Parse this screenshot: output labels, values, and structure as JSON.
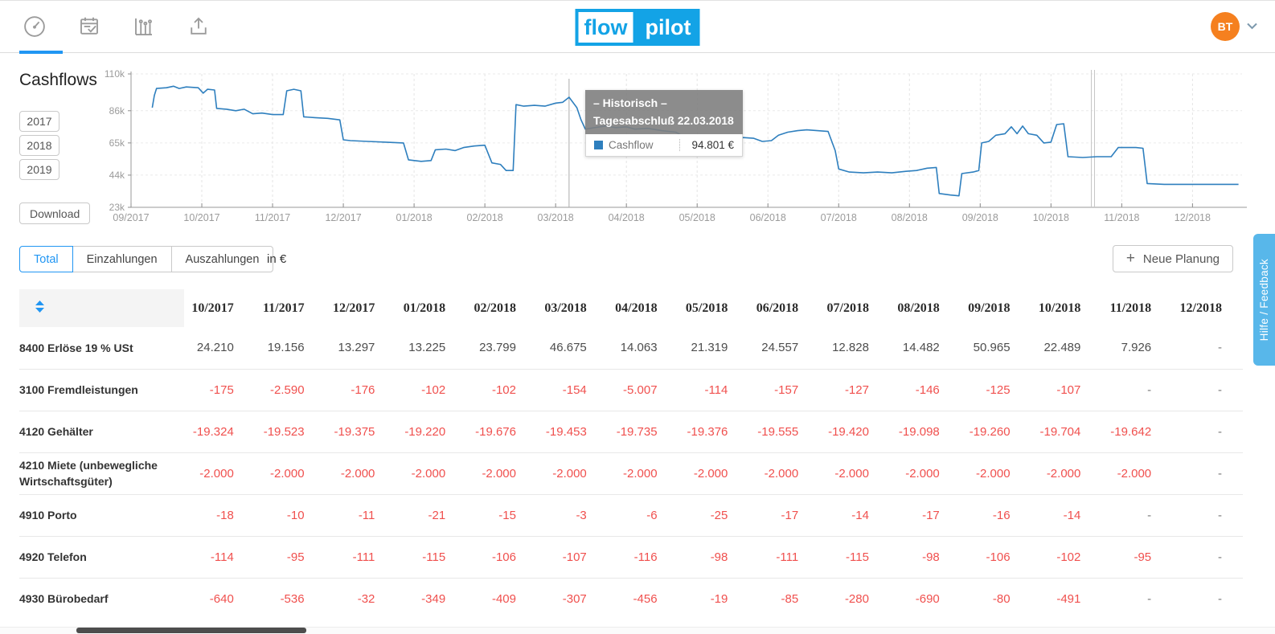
{
  "header": {
    "logo": {
      "left": "flow",
      "right": "pilot"
    },
    "user": {
      "initials": "BT"
    }
  },
  "sidebar": {
    "title": "Cashflows",
    "years": [
      "2017",
      "2018",
      "2019"
    ],
    "download_label": "Download"
  },
  "chart_data": {
    "type": "line",
    "title": "Cashflows",
    "unit": "k EUR",
    "ylim": [
      23,
      110
    ],
    "y_ticks": [
      110,
      86,
      65,
      44,
      23
    ],
    "y_tick_labels": [
      "110k",
      "86k",
      "65k",
      "44k",
      "23k"
    ],
    "x_tick_labels": [
      "09/2017",
      "10/2017",
      "11/2017",
      "12/2017",
      "01/2018",
      "02/2018",
      "03/2018",
      "04/2018",
      "05/2018",
      "06/2018",
      "07/2018",
      "08/2018",
      "09/2018",
      "10/2018",
      "11/2018",
      "12/2018"
    ],
    "grid": true,
    "crosshair_month": 6.19,
    "marker_month": 13.57,
    "series": [
      {
        "name": "Cashflow",
        "color": "#2e7fbe",
        "points": [
          [
            0.3,
            88
          ],
          [
            0.33,
            96
          ],
          [
            0.36,
            100.5
          ],
          [
            0.5,
            101
          ],
          [
            0.6,
            102
          ],
          [
            0.68,
            100.5
          ],
          [
            0.78,
            101.5
          ],
          [
            0.95,
            101
          ],
          [
            1.02,
            97.5
          ],
          [
            1.08,
            100
          ],
          [
            1.18,
            99.5
          ],
          [
            1.21,
            87.5
          ],
          [
            1.35,
            87
          ],
          [
            1.48,
            86
          ],
          [
            1.6,
            87
          ],
          [
            1.72,
            84
          ],
          [
            1.85,
            84.5
          ],
          [
            2.0,
            83.5
          ],
          [
            2.15,
            83.5
          ],
          [
            2.2,
            99
          ],
          [
            2.3,
            100
          ],
          [
            2.4,
            99
          ],
          [
            2.44,
            82
          ],
          [
            2.6,
            81.5
          ],
          [
            2.78,
            81
          ],
          [
            2.95,
            80
          ],
          [
            3.0,
            67
          ],
          [
            3.1,
            66.5
          ],
          [
            3.35,
            66
          ],
          [
            3.6,
            65.5
          ],
          [
            3.85,
            65
          ],
          [
            3.92,
            54
          ],
          [
            4.1,
            53
          ],
          [
            4.24,
            53.5
          ],
          [
            4.3,
            60.5
          ],
          [
            4.45,
            61
          ],
          [
            4.58,
            60
          ],
          [
            4.7,
            62
          ],
          [
            4.85,
            63
          ],
          [
            5.0,
            63.5
          ],
          [
            5.1,
            52
          ],
          [
            5.22,
            51
          ],
          [
            5.3,
            47
          ],
          [
            5.4,
            47
          ],
          [
            5.44,
            90
          ],
          [
            5.55,
            89
          ],
          [
            5.7,
            89.5
          ],
          [
            5.85,
            89
          ],
          [
            6.0,
            91
          ],
          [
            6.1,
            91.5
          ],
          [
            6.19,
            94.8
          ],
          [
            6.3,
            88
          ],
          [
            6.36,
            80
          ],
          [
            6.42,
            74
          ],
          [
            6.55,
            75
          ],
          [
            6.7,
            76
          ],
          [
            6.85,
            75
          ],
          [
            7.0,
            75.5
          ],
          [
            7.12,
            74
          ],
          [
            7.3,
            74.5
          ],
          [
            7.5,
            73
          ],
          [
            7.7,
            72
          ],
          [
            7.85,
            68
          ],
          [
            8.0,
            67
          ],
          [
            8.2,
            66.5
          ],
          [
            8.38,
            67
          ],
          [
            8.52,
            68
          ],
          [
            8.65,
            68.5
          ],
          [
            8.8,
            68
          ],
          [
            8.92,
            66
          ],
          [
            9.05,
            66.5
          ],
          [
            9.15,
            70
          ],
          [
            9.28,
            72
          ],
          [
            9.42,
            73
          ],
          [
            9.55,
            73.5
          ],
          [
            9.7,
            73
          ],
          [
            9.85,
            72.5
          ],
          [
            9.95,
            60
          ],
          [
            10.0,
            48
          ],
          [
            10.15,
            46
          ],
          [
            10.35,
            45.5
          ],
          [
            10.55,
            46
          ],
          [
            10.75,
            45.5
          ],
          [
            10.95,
            46.5
          ],
          [
            11.1,
            47
          ],
          [
            11.25,
            48.5
          ],
          [
            11.38,
            49
          ],
          [
            11.42,
            32
          ],
          [
            11.58,
            31
          ],
          [
            11.7,
            30.5
          ],
          [
            11.74,
            45
          ],
          [
            11.9,
            46
          ],
          [
            11.98,
            47
          ],
          [
            12.02,
            65
          ],
          [
            12.12,
            66
          ],
          [
            12.22,
            70
          ],
          [
            12.35,
            71
          ],
          [
            12.44,
            75.5
          ],
          [
            12.52,
            71
          ],
          [
            12.6,
            76
          ],
          [
            12.68,
            71
          ],
          [
            12.8,
            70
          ],
          [
            12.9,
            65
          ],
          [
            13.0,
            65.5
          ],
          [
            13.08,
            77
          ],
          [
            13.18,
            77.5
          ],
          [
            13.24,
            56
          ],
          [
            13.45,
            55.5
          ],
          [
            13.65,
            56
          ],
          [
            13.85,
            56
          ],
          [
            13.95,
            62
          ],
          [
            14.2,
            62
          ],
          [
            14.3,
            61.5
          ],
          [
            14.36,
            38.5
          ],
          [
            14.6,
            38
          ],
          [
            15.0,
            38
          ],
          [
            15.4,
            38
          ],
          [
            15.65,
            38
          ]
        ]
      }
    ]
  },
  "tooltip": {
    "line1": "– Historisch –",
    "line2": "Tagesabschluß 22.03.2018",
    "series_label": "Cashflow",
    "value": "94.801 €"
  },
  "tabs": {
    "items": [
      "Total",
      "Einzahlungen",
      "Auszahlungen"
    ],
    "active": 0,
    "unit_label": "in €"
  },
  "actions": {
    "plus": "+",
    "new_plan_label": "Neue Planung"
  },
  "help_tab": {
    "label": "Hilfe / Feedback"
  },
  "table": {
    "columns": [
      "10/2017",
      "11/2017",
      "12/2017",
      "01/2018",
      "02/2018",
      "03/2018",
      "04/2018",
      "05/2018",
      "06/2018",
      "07/2018",
      "08/2018",
      "09/2018",
      "10/2018",
      "11/2018",
      "12/2018"
    ],
    "rows": [
      {
        "label": "8400 Erlöse 19 % USt",
        "values": [
          "24.210",
          "19.156",
          "13.297",
          "13.225",
          "23.799",
          "46.675",
          "14.063",
          "21.319",
          "24.557",
          "12.828",
          "14.482",
          "50.965",
          "22.489",
          "7.926",
          "-"
        ]
      },
      {
        "label": "3100 Fremdleistungen",
        "values": [
          "-175",
          "-2.590",
          "-176",
          "-102",
          "-102",
          "-154",
          "-5.007",
          "-114",
          "-157",
          "-127",
          "-146",
          "-125",
          "-107",
          "-",
          "-"
        ]
      },
      {
        "label": "4120 Gehälter",
        "values": [
          "-19.324",
          "-19.523",
          "-19.375",
          "-19.220",
          "-19.676",
          "-19.453",
          "-19.735",
          "-19.376",
          "-19.555",
          "-19.420",
          "-19.098",
          "-19.260",
          "-19.704",
          "-19.642",
          "-"
        ]
      },
      {
        "label": "4210 Miete (unbewegliche Wirtschaftsgüter)",
        "values": [
          "-2.000",
          "-2.000",
          "-2.000",
          "-2.000",
          "-2.000",
          "-2.000",
          "-2.000",
          "-2.000",
          "-2.000",
          "-2.000",
          "-2.000",
          "-2.000",
          "-2.000",
          "-2.000",
          "-"
        ]
      },
      {
        "label": "4910 Porto",
        "values": [
          "-18",
          "-10",
          "-11",
          "-21",
          "-15",
          "-3",
          "-6",
          "-25",
          "-17",
          "-14",
          "-17",
          "-16",
          "-14",
          "-",
          "-"
        ]
      },
      {
        "label": "4920 Telefon",
        "values": [
          "-114",
          "-95",
          "-111",
          "-115",
          "-106",
          "-107",
          "-116",
          "-98",
          "-111",
          "-115",
          "-98",
          "-106",
          "-102",
          "-95",
          "-"
        ]
      },
      {
        "label": "4930 Bürobedarf",
        "values": [
          "-640",
          "-536",
          "-32",
          "-349",
          "-409",
          "-307",
          "-456",
          "-19",
          "-85",
          "-280",
          "-690",
          "-80",
          "-491",
          "-",
          "-"
        ]
      }
    ]
  }
}
